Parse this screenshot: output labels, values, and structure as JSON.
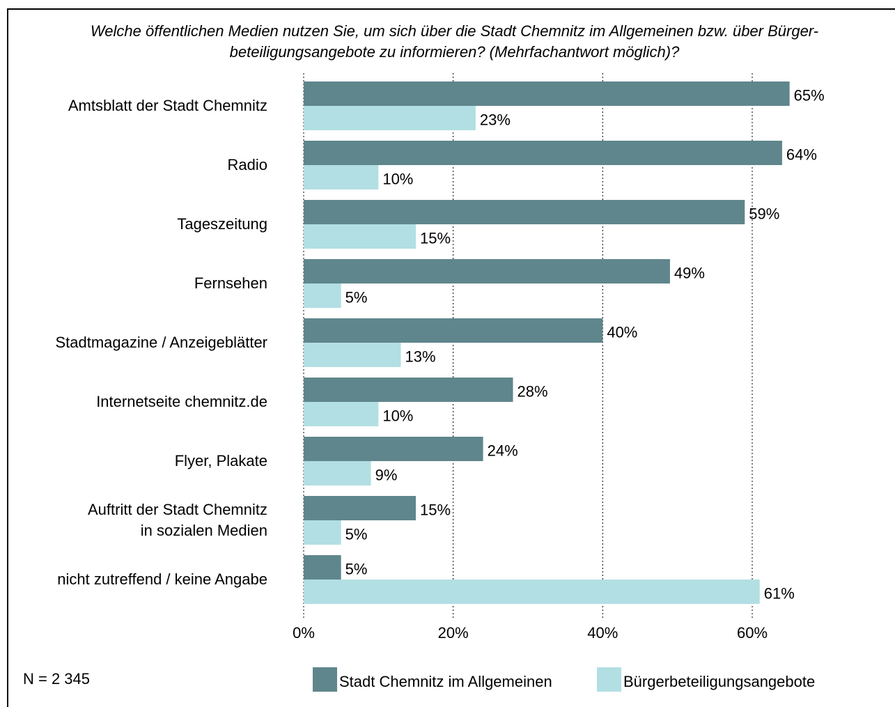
{
  "chart_data": {
    "type": "bar",
    "orientation": "horizontal",
    "title": "Welche öffentlichen Medien nutzen Sie, um sich über die Stadt Chemnitz im Allgemeinen bzw. über Bürger-\nbeteiligungsangebote zu informieren? (Mehrfachantwort möglich)?",
    "note": "N = 2 345",
    "categories": [
      "Amtsblatt der Stadt Chemnitz",
      "Radio",
      "Tageszeitung",
      "Fernsehen",
      "Stadtmagazine / Anzeigeblätter",
      "Internetseite chemnitz.de",
      "Flyer, Plakate",
      "Auftritt der Stadt Chemnitz\nin sozialen Medien",
      "nicht zutreffend / keine Angabe"
    ],
    "series": [
      {
        "name": "Stadt Chemnitz im Allgemeinen",
        "color": "#5f868c",
        "values": [
          65,
          64,
          59,
          49,
          40,
          28,
          24,
          15,
          5
        ],
        "value_labels": [
          "65%",
          "64%",
          "59%",
          "49%",
          "40%",
          "28%",
          "24%",
          "15%",
          "5%"
        ]
      },
      {
        "name": "Bürgerbeteiligungsangebote",
        "color": "#b2dfe3",
        "values": [
          23,
          10,
          15,
          5,
          13,
          10,
          9,
          5,
          61
        ],
        "value_labels": [
          "23%",
          "10%",
          "15%",
          "5%",
          "13%",
          "10%",
          "9%",
          "5%",
          "61%"
        ]
      }
    ],
    "xlim": [
      0,
      60
    ],
    "xticks": [
      {
        "value": 0,
        "label": "0%"
      },
      {
        "value": 20,
        "label": "20%"
      },
      {
        "value": 40,
        "label": "40%"
      },
      {
        "value": 60,
        "label": "60%"
      }
    ],
    "grid": true,
    "legend": "bottom"
  }
}
